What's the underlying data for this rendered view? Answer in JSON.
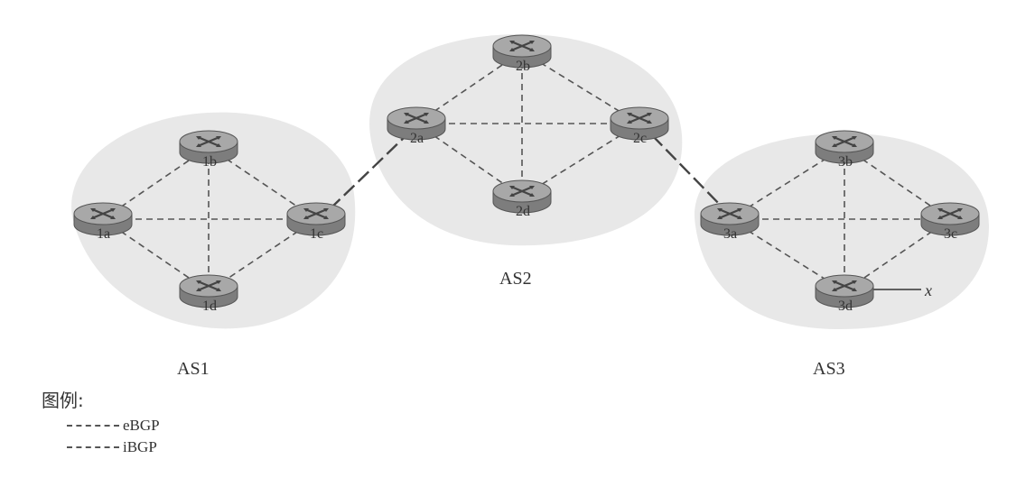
{
  "as_labels": {
    "as1": "AS1",
    "as2": "AS2",
    "as3": "AS3"
  },
  "routers": {
    "r1a": "1a",
    "r1b": "1b",
    "r1c": "1c",
    "r1d": "1d",
    "r2a": "2a",
    "r2b": "2b",
    "r2c": "2c",
    "r2d": "2d",
    "r3a": "3a",
    "r3b": "3b",
    "r3c": "3c",
    "r3d": "3d"
  },
  "destination_label": "x",
  "legend": {
    "title": "图例:",
    "ebgp": "eBGP",
    "ibgp": "iBGP"
  },
  "colors": {
    "as_cloud": "#e6e6e6",
    "router_top": "#a9a9a9",
    "router_body": "#8a8a8a",
    "link": "#555555"
  }
}
